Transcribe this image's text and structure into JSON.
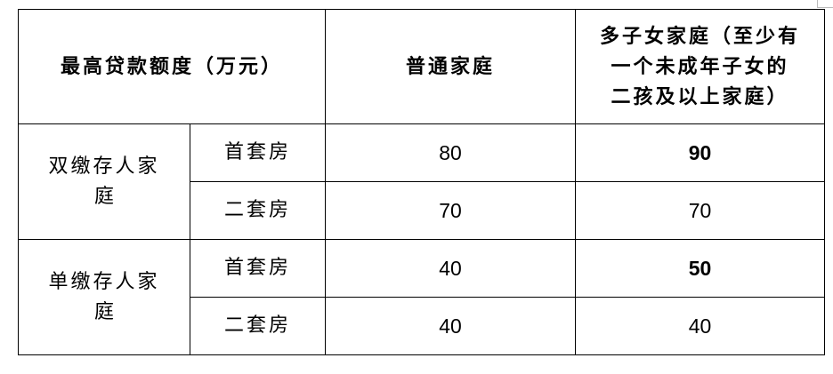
{
  "header": {
    "limit_label": "最高贷款额度（万元）",
    "regular_family": "普通家庭",
    "multi_child_family_lines": [
      "多子女家庭（至少有",
      "一个未成年子女的",
      "二孩及以上家庭）"
    ]
  },
  "groups": [
    {
      "label_lines": [
        "双缴存人家",
        "庭"
      ],
      "rows": [
        {
          "type": "首套房",
          "regular": "80",
          "multi_child": "90",
          "multi_child_bold": true
        },
        {
          "type": "二套房",
          "regular": "70",
          "multi_child": "70",
          "multi_child_bold": false
        }
      ]
    },
    {
      "label_lines": [
        "单缴存人家",
        "庭"
      ],
      "rows": [
        {
          "type": "首套房",
          "regular": "40",
          "multi_child": "50",
          "multi_child_bold": true
        },
        {
          "type": "二套房",
          "regular": "40",
          "multi_child": "40",
          "multi_child_bold": false
        }
      ]
    }
  ]
}
